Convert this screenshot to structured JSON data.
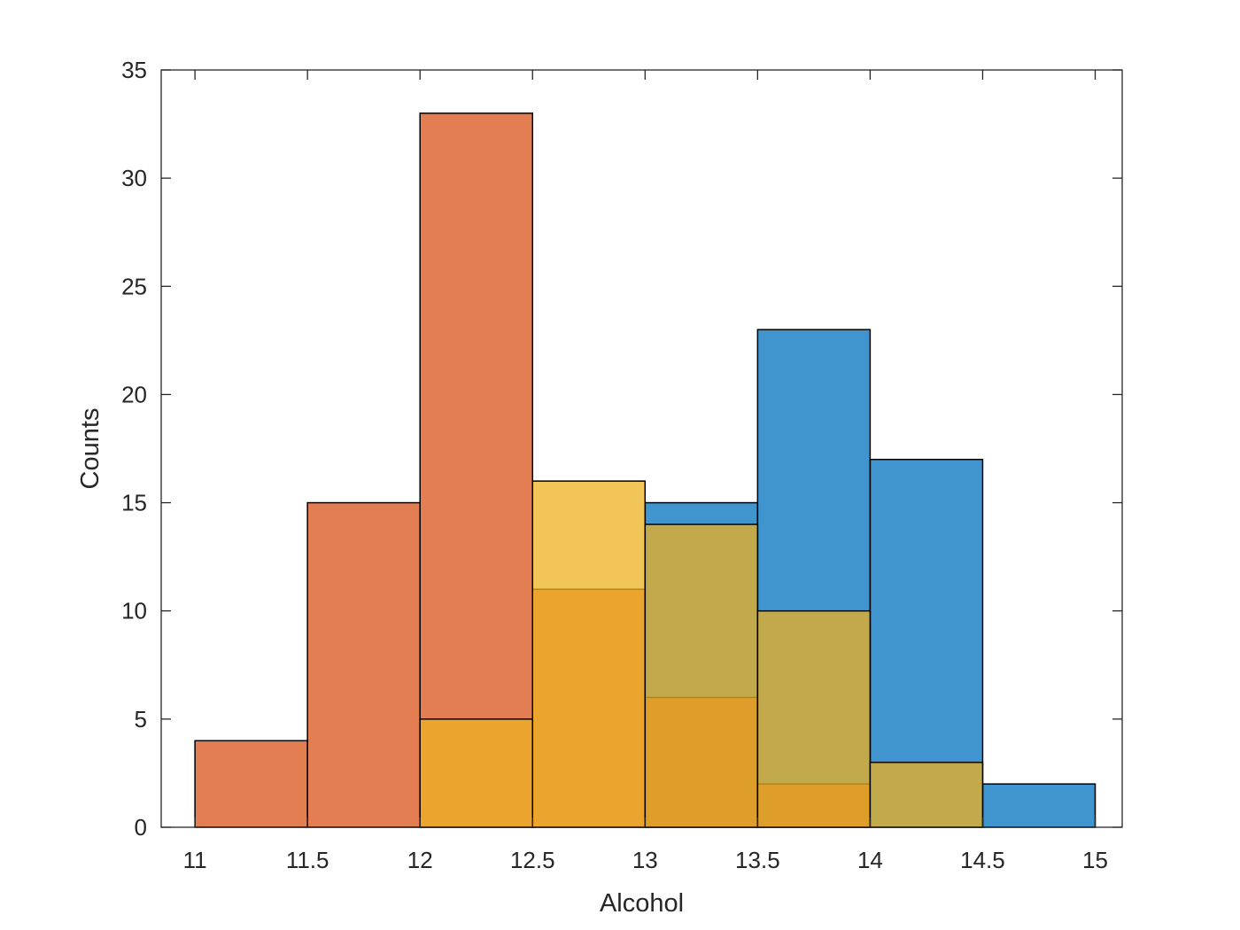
{
  "chart_data": {
    "type": "bar",
    "title": "",
    "xlabel": "Alcohol",
    "ylabel": "Counts",
    "xlim": [
      10.85,
      15.12
    ],
    "ylim": [
      0,
      35
    ],
    "xticks": [
      11,
      11.5,
      12,
      12.5,
      13,
      13.5,
      14,
      14.5,
      15
    ],
    "yticks": [
      0,
      5,
      10,
      15,
      20,
      25,
      30,
      35
    ],
    "bin_edges": [
      11,
      11.5,
      12,
      12.5,
      13,
      13.5,
      14,
      14.5,
      15
    ],
    "grid": false,
    "legend": "none",
    "series": [
      {
        "color": "#0072BD",
        "values": [
          0,
          0,
          0,
          0,
          15,
          23,
          17,
          2
        ]
      },
      {
        "color": "#D95319",
        "values": [
          4,
          15,
          33,
          11,
          6,
          2,
          0,
          0
        ]
      },
      {
        "color": "#EDB120",
        "values": [
          0,
          0,
          5,
          16,
          14,
          10,
          3,
          0
        ]
      }
    ]
  }
}
